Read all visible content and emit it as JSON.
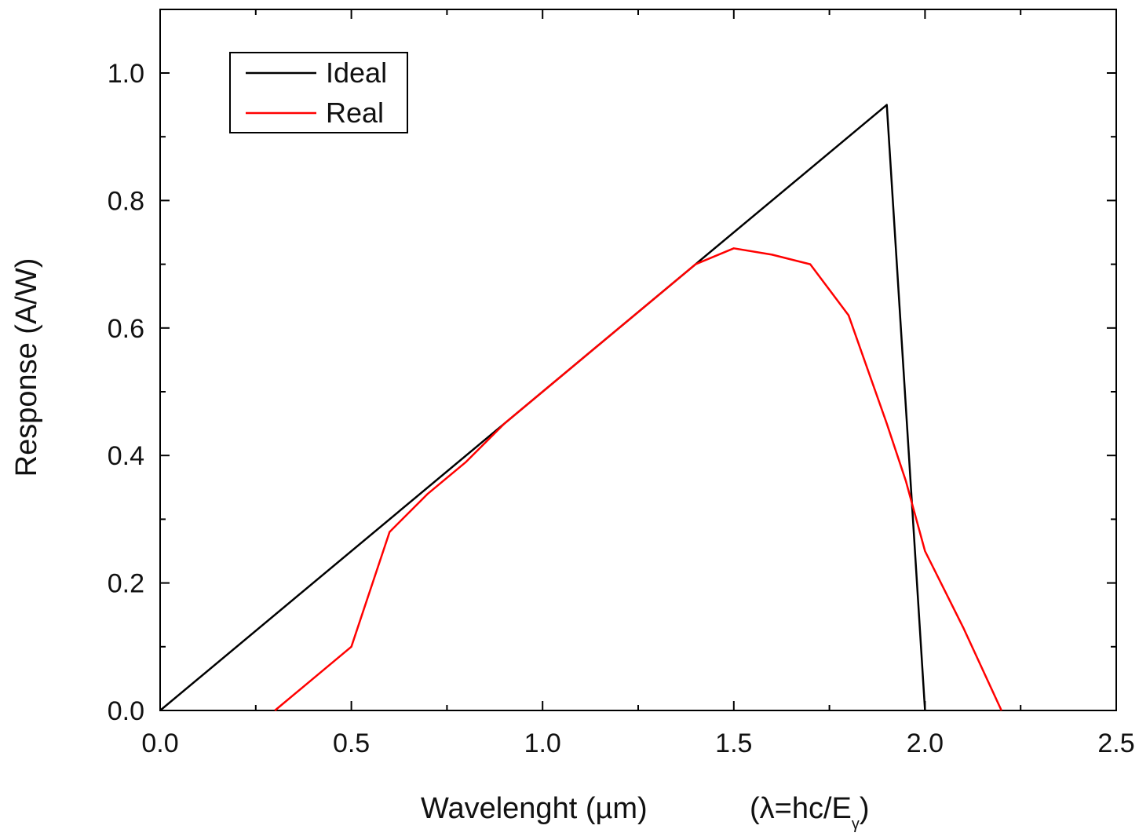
{
  "chart_data": {
    "type": "line",
    "title": "",
    "xlabel": "Wavelenght (µm)",
    "xlabel_formula": "(λ=hc/E",
    "xlabel_formula_sub": "γ",
    "xlabel_formula_close": ")",
    "ylabel": "Response (A/W)",
    "xlim": [
      0.0,
      2.5
    ],
    "ylim": [
      0.0,
      1.1
    ],
    "xticks": [
      0.0,
      0.5,
      1.0,
      1.5,
      2.0,
      2.5
    ],
    "xtick_labels": [
      "0.0",
      "0.5",
      "1.0",
      "1.5",
      "2.0",
      "2.5"
    ],
    "yticks": [
      0.0,
      0.2,
      0.4,
      0.6,
      0.8,
      1.0
    ],
    "ytick_labels": [
      "0.0",
      "0.2",
      "0.4",
      "0.6",
      "0.8",
      "1.0"
    ],
    "grid": false,
    "legend_position": "top-left",
    "series": [
      {
        "name": "Ideal",
        "color": "#000000",
        "x": [
          0.0,
          1.9,
          2.0
        ],
        "y": [
          0.0,
          0.95,
          0.0
        ]
      },
      {
        "name": "Real",
        "color": "#ff0000",
        "x": [
          0.3,
          0.4,
          0.5,
          0.6,
          0.7,
          0.8,
          0.9,
          1.0,
          1.1,
          1.2,
          1.3,
          1.4,
          1.5,
          1.6,
          1.7,
          1.8,
          1.9,
          1.95,
          2.0,
          2.1,
          2.2
        ],
        "y": [
          0.0,
          0.05,
          0.1,
          0.28,
          0.34,
          0.39,
          0.45,
          0.5,
          0.55,
          0.6,
          0.65,
          0.7,
          0.725,
          0.715,
          0.7,
          0.62,
          0.45,
          0.36,
          0.25,
          0.13,
          0.0
        ]
      }
    ]
  }
}
